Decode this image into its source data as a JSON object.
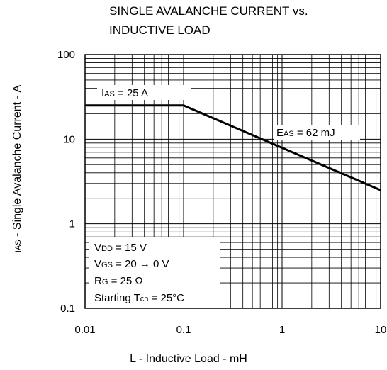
{
  "chart_data": {
    "type": "line",
    "title_lines": [
      "SINGLE AVALANCHE CURRENT vs.",
      "INDUCTIVE LOAD"
    ],
    "xlabel": "L - Inductive Load - mH",
    "ylabel_sub": "IAS",
    "ylabel_rest": " - Single Avalanche Current - A",
    "x_scale": "log",
    "y_scale": "log",
    "xlim": [
      0.01,
      10
    ],
    "ylim": [
      0.1,
      100
    ],
    "grid": true,
    "x_ticks": [
      {
        "value": 0.01,
        "label": "0.01"
      },
      {
        "value": 0.1,
        "label": "0.1"
      },
      {
        "value": 1,
        "label": "1"
      },
      {
        "value": 10,
        "label": "10"
      }
    ],
    "y_ticks": [
      {
        "value": 0.1,
        "label": "0.1"
      },
      {
        "value": 1,
        "label": "1"
      },
      {
        "value": 10,
        "label": "10"
      },
      {
        "value": 100,
        "label": "100"
      }
    ],
    "series": [
      {
        "x": [
          0.01,
          0.1,
          10
        ],
        "y": [
          25,
          25,
          2.5
        ]
      }
    ],
    "annotations": {
      "ias": {
        "main": "I",
        "sub": "AS",
        "rest": " = 25 A"
      },
      "eas": {
        "main": "E",
        "sub": "AS",
        "rest": " = 62 mJ"
      },
      "vdd": {
        "main": "V",
        "sub": "DD",
        "rest": " = 15 V"
      },
      "vgs": {
        "main": "V",
        "sub": "GS",
        "rest": " = 20 → 0 V"
      },
      "rg": {
        "main": "R",
        "sub": "G",
        "rest": " = 25 Ω"
      },
      "tch": {
        "main": "Starting T",
        "sub": "ch",
        "rest": " = 25°C"
      }
    }
  }
}
